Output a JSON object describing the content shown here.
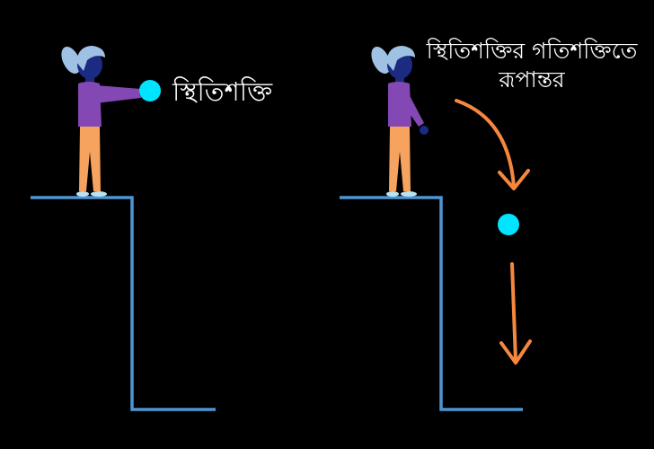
{
  "labels": {
    "potential_energy": "স্থিতিশক্তি",
    "conversion_line1": "স্থিতিশক্তির গতিশক্তিতে",
    "conversion_line2": "রূপান্তর"
  },
  "colors": {
    "background": "#000000",
    "cliff": "#4f95d1",
    "ball": "#00e5ff",
    "arrow": "#f5873f",
    "shirt": "#8348b3",
    "pants": "#f5a35f",
    "skin": "#1b2b82",
    "hair": "#9fc2e4"
  },
  "icons": {
    "person": "girl-standing-icon",
    "ball": "ball-icon",
    "arrows": [
      "curved-arrow-icon",
      "down-arrow-icon"
    ]
  }
}
